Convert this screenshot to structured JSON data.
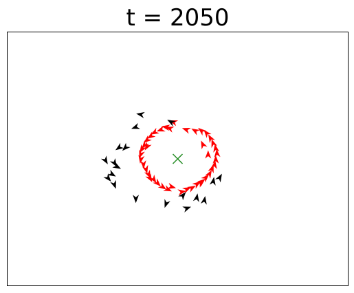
{
  "chart_data": {
    "type": "scatter",
    "title": "t = 2050",
    "xlabel": "",
    "ylabel": "",
    "xlim": [
      -1,
      1
    ],
    "ylim": [
      -1,
      1
    ],
    "axes_ticks": "none",
    "grid": false,
    "target": {
      "x": 0.0,
      "y": 0.0,
      "marker": "x",
      "color": "#228b22"
    },
    "series": [
      {
        "color": "#ff0000",
        "points": [
          [
            -0.06,
            0.24,
            160
          ],
          [
            -0.09,
            0.25,
            170
          ],
          [
            -0.13,
            0.23,
            200
          ],
          [
            -0.18,
            0.21,
            210
          ],
          [
            -0.21,
            0.18,
            215
          ],
          [
            -0.24,
            0.15,
            220
          ],
          [
            -0.26,
            0.11,
            230
          ],
          [
            -0.28,
            0.08,
            240
          ],
          [
            -0.29,
            0.04,
            250
          ],
          [
            -0.29,
            0.0,
            260
          ],
          [
            -0.27,
            -0.04,
            275
          ],
          [
            -0.25,
            -0.08,
            285
          ],
          [
            -0.23,
            -0.12,
            295
          ],
          [
            -0.19,
            -0.16,
            305
          ],
          [
            -0.16,
            -0.19,
            315
          ],
          [
            -0.12,
            -0.22,
            325
          ],
          [
            -0.08,
            -0.24,
            335
          ],
          [
            -0.05,
            -0.22,
            345
          ],
          [
            0.03,
            -0.26,
            10
          ],
          [
            0.07,
            -0.24,
            25
          ],
          [
            0.11,
            -0.23,
            30
          ],
          [
            0.15,
            -0.2,
            35
          ],
          [
            0.19,
            -0.18,
            40
          ],
          [
            0.22,
            -0.15,
            45
          ],
          [
            0.25,
            -0.12,
            60
          ],
          [
            0.27,
            -0.08,
            70
          ],
          [
            0.29,
            -0.05,
            80
          ],
          [
            0.3,
            -0.01,
            90
          ],
          [
            0.31,
            0.04,
            95
          ],
          [
            0.3,
            0.08,
            100
          ],
          [
            0.28,
            0.12,
            110
          ],
          [
            0.26,
            0.16,
            120
          ],
          [
            0.23,
            0.2,
            130
          ],
          [
            0.19,
            0.22,
            140
          ],
          [
            0.14,
            0.22,
            150
          ],
          [
            0.07,
            0.23,
            160
          ],
          [
            -0.03,
            0.29,
            160
          ],
          [
            -0.24,
            0.1,
            240
          ],
          [
            -0.22,
            -0.15,
            300
          ],
          [
            0.18,
            -0.19,
            40
          ],
          [
            0.24,
            0.03,
            90
          ],
          [
            0.2,
            0.11,
            115
          ]
        ]
      },
      {
        "color": "#000000",
        "points": [
          [
            -0.29,
            0.35,
            170
          ],
          [
            -0.33,
            0.25,
            200
          ],
          [
            -0.46,
            0.09,
            215
          ],
          [
            -0.41,
            0.09,
            225
          ],
          [
            -0.57,
            -0.01,
            300
          ],
          [
            -0.48,
            -0.06,
            330
          ],
          [
            -0.5,
            -0.03,
            300
          ],
          [
            -0.52,
            -0.12,
            330
          ],
          [
            -0.55,
            -0.15,
            310
          ],
          [
            -0.5,
            -0.2,
            290
          ],
          [
            -0.33,
            -0.31,
            270
          ],
          [
            -0.09,
            -0.35,
            250
          ],
          [
            0.04,
            -0.29,
            50
          ],
          [
            0.07,
            -0.39,
            20
          ],
          [
            0.15,
            -0.31,
            80
          ],
          [
            0.21,
            -0.33,
            80
          ],
          [
            0.33,
            -0.15,
            60
          ],
          [
            0.28,
            -0.18,
            80
          ],
          [
            -0.05,
            0.29,
            150
          ]
        ]
      }
    ]
  }
}
